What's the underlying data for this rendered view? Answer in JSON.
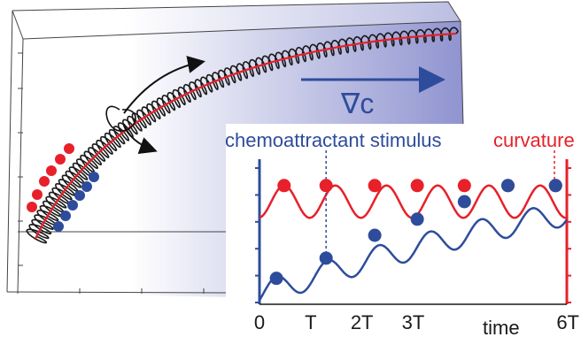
{
  "box": {
    "gradient_label": "∇c",
    "gradient_colors": [
      "#ffffff",
      "#8e92cf"
    ]
  },
  "colors": {
    "curvature": "#e8202a",
    "stimulus": "#2e4c9c",
    "helix": "#1a1a1a",
    "arrow": "#2e4c9c"
  },
  "icons": {
    "rotation": "curved-arrow-icon",
    "gradient": "arrow-right-icon"
  },
  "chart_data": {
    "type": "line",
    "title": "",
    "legend": [
      "chemoattractant stimulus",
      "curvature"
    ],
    "xlabel": "time",
    "x_ticks": [
      "0",
      "T",
      "2T",
      "3T",
      "6T"
    ],
    "x_tick_values": [
      0,
      1,
      2,
      3,
      6
    ],
    "xlim": [
      0,
      6
    ],
    "ylim": [
      0,
      1
    ],
    "series": [
      {
        "name": "curvature",
        "color": "#e8202a",
        "shape": "periodic",
        "period": 1,
        "amplitude": 0.12,
        "baseline": 0.75,
        "marker_x": [
          0.48,
          1.3,
          2.25,
          3.08,
          4.0,
          4.85,
          5.78
        ],
        "marker_y": [
          0.87,
          0.87,
          0.87,
          0.87,
          0.87,
          0.87,
          0.87
        ]
      },
      {
        "name": "chemoattractant stimulus",
        "color": "#2e4c9c",
        "shape": "rising-oscillation",
        "period": 1,
        "marker_x": [
          0.33,
          1.3,
          2.25,
          3.08,
          4.0,
          4.85,
          5.78
        ],
        "marker_y": [
          0.18,
          0.33,
          0.5,
          0.62,
          0.75,
          0.87,
          0.87
        ]
      }
    ],
    "annotations": [
      "T"
    ]
  }
}
